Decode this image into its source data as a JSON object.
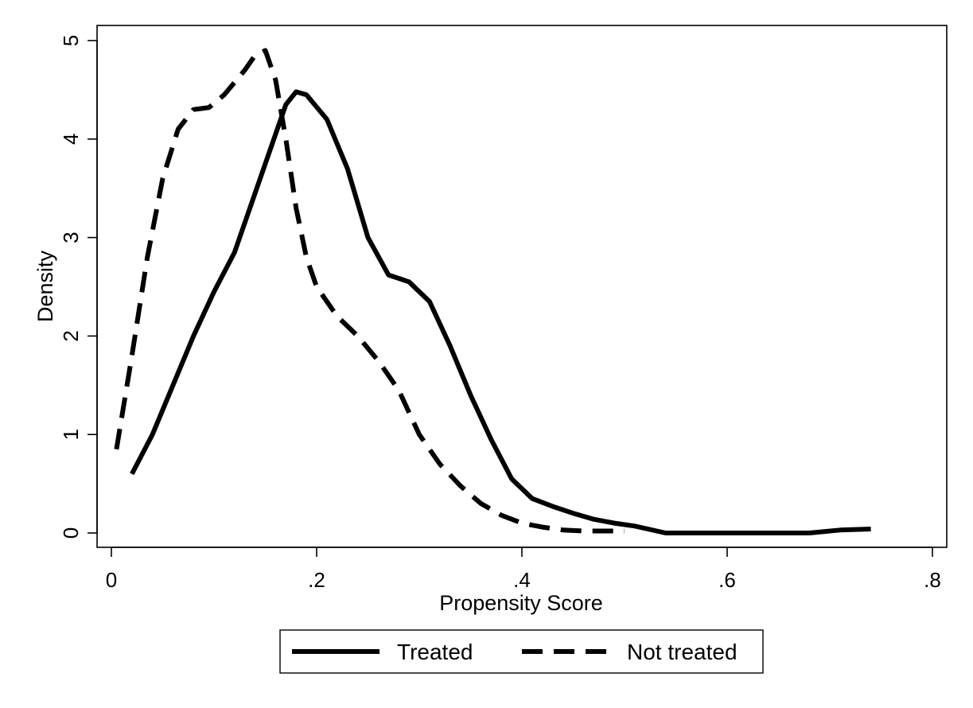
{
  "chart_data": {
    "type": "line",
    "xlabel": "Propensity Score",
    "ylabel": "Density",
    "xlim": [
      0,
      0.8
    ],
    "ylim": [
      0,
      5
    ],
    "x_ticks": [
      {
        "value": 0,
        "label": "0"
      },
      {
        "value": 0.2,
        "label": ".2"
      },
      {
        "value": 0.4,
        "label": ".4"
      },
      {
        "value": 0.6,
        "label": ".6"
      },
      {
        "value": 0.8,
        "label": ".8"
      }
    ],
    "y_ticks": [
      {
        "value": 0,
        "label": "0"
      },
      {
        "value": 1,
        "label": "1"
      },
      {
        "value": 2,
        "label": "2"
      },
      {
        "value": 3,
        "label": "3"
      },
      {
        "value": 4,
        "label": "4"
      },
      {
        "value": 5,
        "label": "5"
      }
    ],
    "grid": false,
    "legend_position": "bottom",
    "series": [
      {
        "name": "Treated",
        "style": "solid",
        "color": "#000000",
        "points": [
          [
            0.02,
            0.6
          ],
          [
            0.04,
            1.0
          ],
          [
            0.06,
            1.5
          ],
          [
            0.08,
            2.0
          ],
          [
            0.1,
            2.45
          ],
          [
            0.12,
            2.85
          ],
          [
            0.14,
            3.45
          ],
          [
            0.16,
            4.05
          ],
          [
            0.17,
            4.35
          ],
          [
            0.18,
            4.48
          ],
          [
            0.19,
            4.45
          ],
          [
            0.21,
            4.2
          ],
          [
            0.23,
            3.7
          ],
          [
            0.25,
            3.0
          ],
          [
            0.27,
            2.62
          ],
          [
            0.29,
            2.55
          ],
          [
            0.31,
            2.35
          ],
          [
            0.33,
            1.9
          ],
          [
            0.35,
            1.4
          ],
          [
            0.37,
            0.95
          ],
          [
            0.39,
            0.55
          ],
          [
            0.41,
            0.35
          ],
          [
            0.43,
            0.27
          ],
          [
            0.45,
            0.2
          ],
          [
            0.47,
            0.14
          ],
          [
            0.49,
            0.1
          ],
          [
            0.51,
            0.07
          ],
          [
            0.54,
            0.0
          ],
          [
            0.6,
            0.0
          ],
          [
            0.66,
            0.0
          ],
          [
            0.68,
            0.0
          ],
          [
            0.71,
            0.03
          ],
          [
            0.74,
            0.04
          ]
        ]
      },
      {
        "name": "Not treated",
        "style": "dashed",
        "color": "#000000",
        "points": [
          [
            0.005,
            0.85
          ],
          [
            0.02,
            1.8
          ],
          [
            0.035,
            2.8
          ],
          [
            0.05,
            3.6
          ],
          [
            0.065,
            4.1
          ],
          [
            0.08,
            4.3
          ],
          [
            0.095,
            4.32
          ],
          [
            0.11,
            4.45
          ],
          [
            0.13,
            4.7
          ],
          [
            0.14,
            4.85
          ],
          [
            0.15,
            4.9
          ],
          [
            0.16,
            4.6
          ],
          [
            0.17,
            4.0
          ],
          [
            0.18,
            3.3
          ],
          [
            0.19,
            2.8
          ],
          [
            0.2,
            2.5
          ],
          [
            0.22,
            2.2
          ],
          [
            0.24,
            2.0
          ],
          [
            0.26,
            1.75
          ],
          [
            0.28,
            1.45
          ],
          [
            0.3,
            1.0
          ],
          [
            0.32,
            0.7
          ],
          [
            0.34,
            0.48
          ],
          [
            0.36,
            0.3
          ],
          [
            0.38,
            0.18
          ],
          [
            0.4,
            0.1
          ],
          [
            0.42,
            0.06
          ],
          [
            0.44,
            0.03
          ],
          [
            0.46,
            0.02
          ],
          [
            0.48,
            0.02
          ],
          [
            0.5,
            0.02
          ]
        ]
      }
    ]
  }
}
